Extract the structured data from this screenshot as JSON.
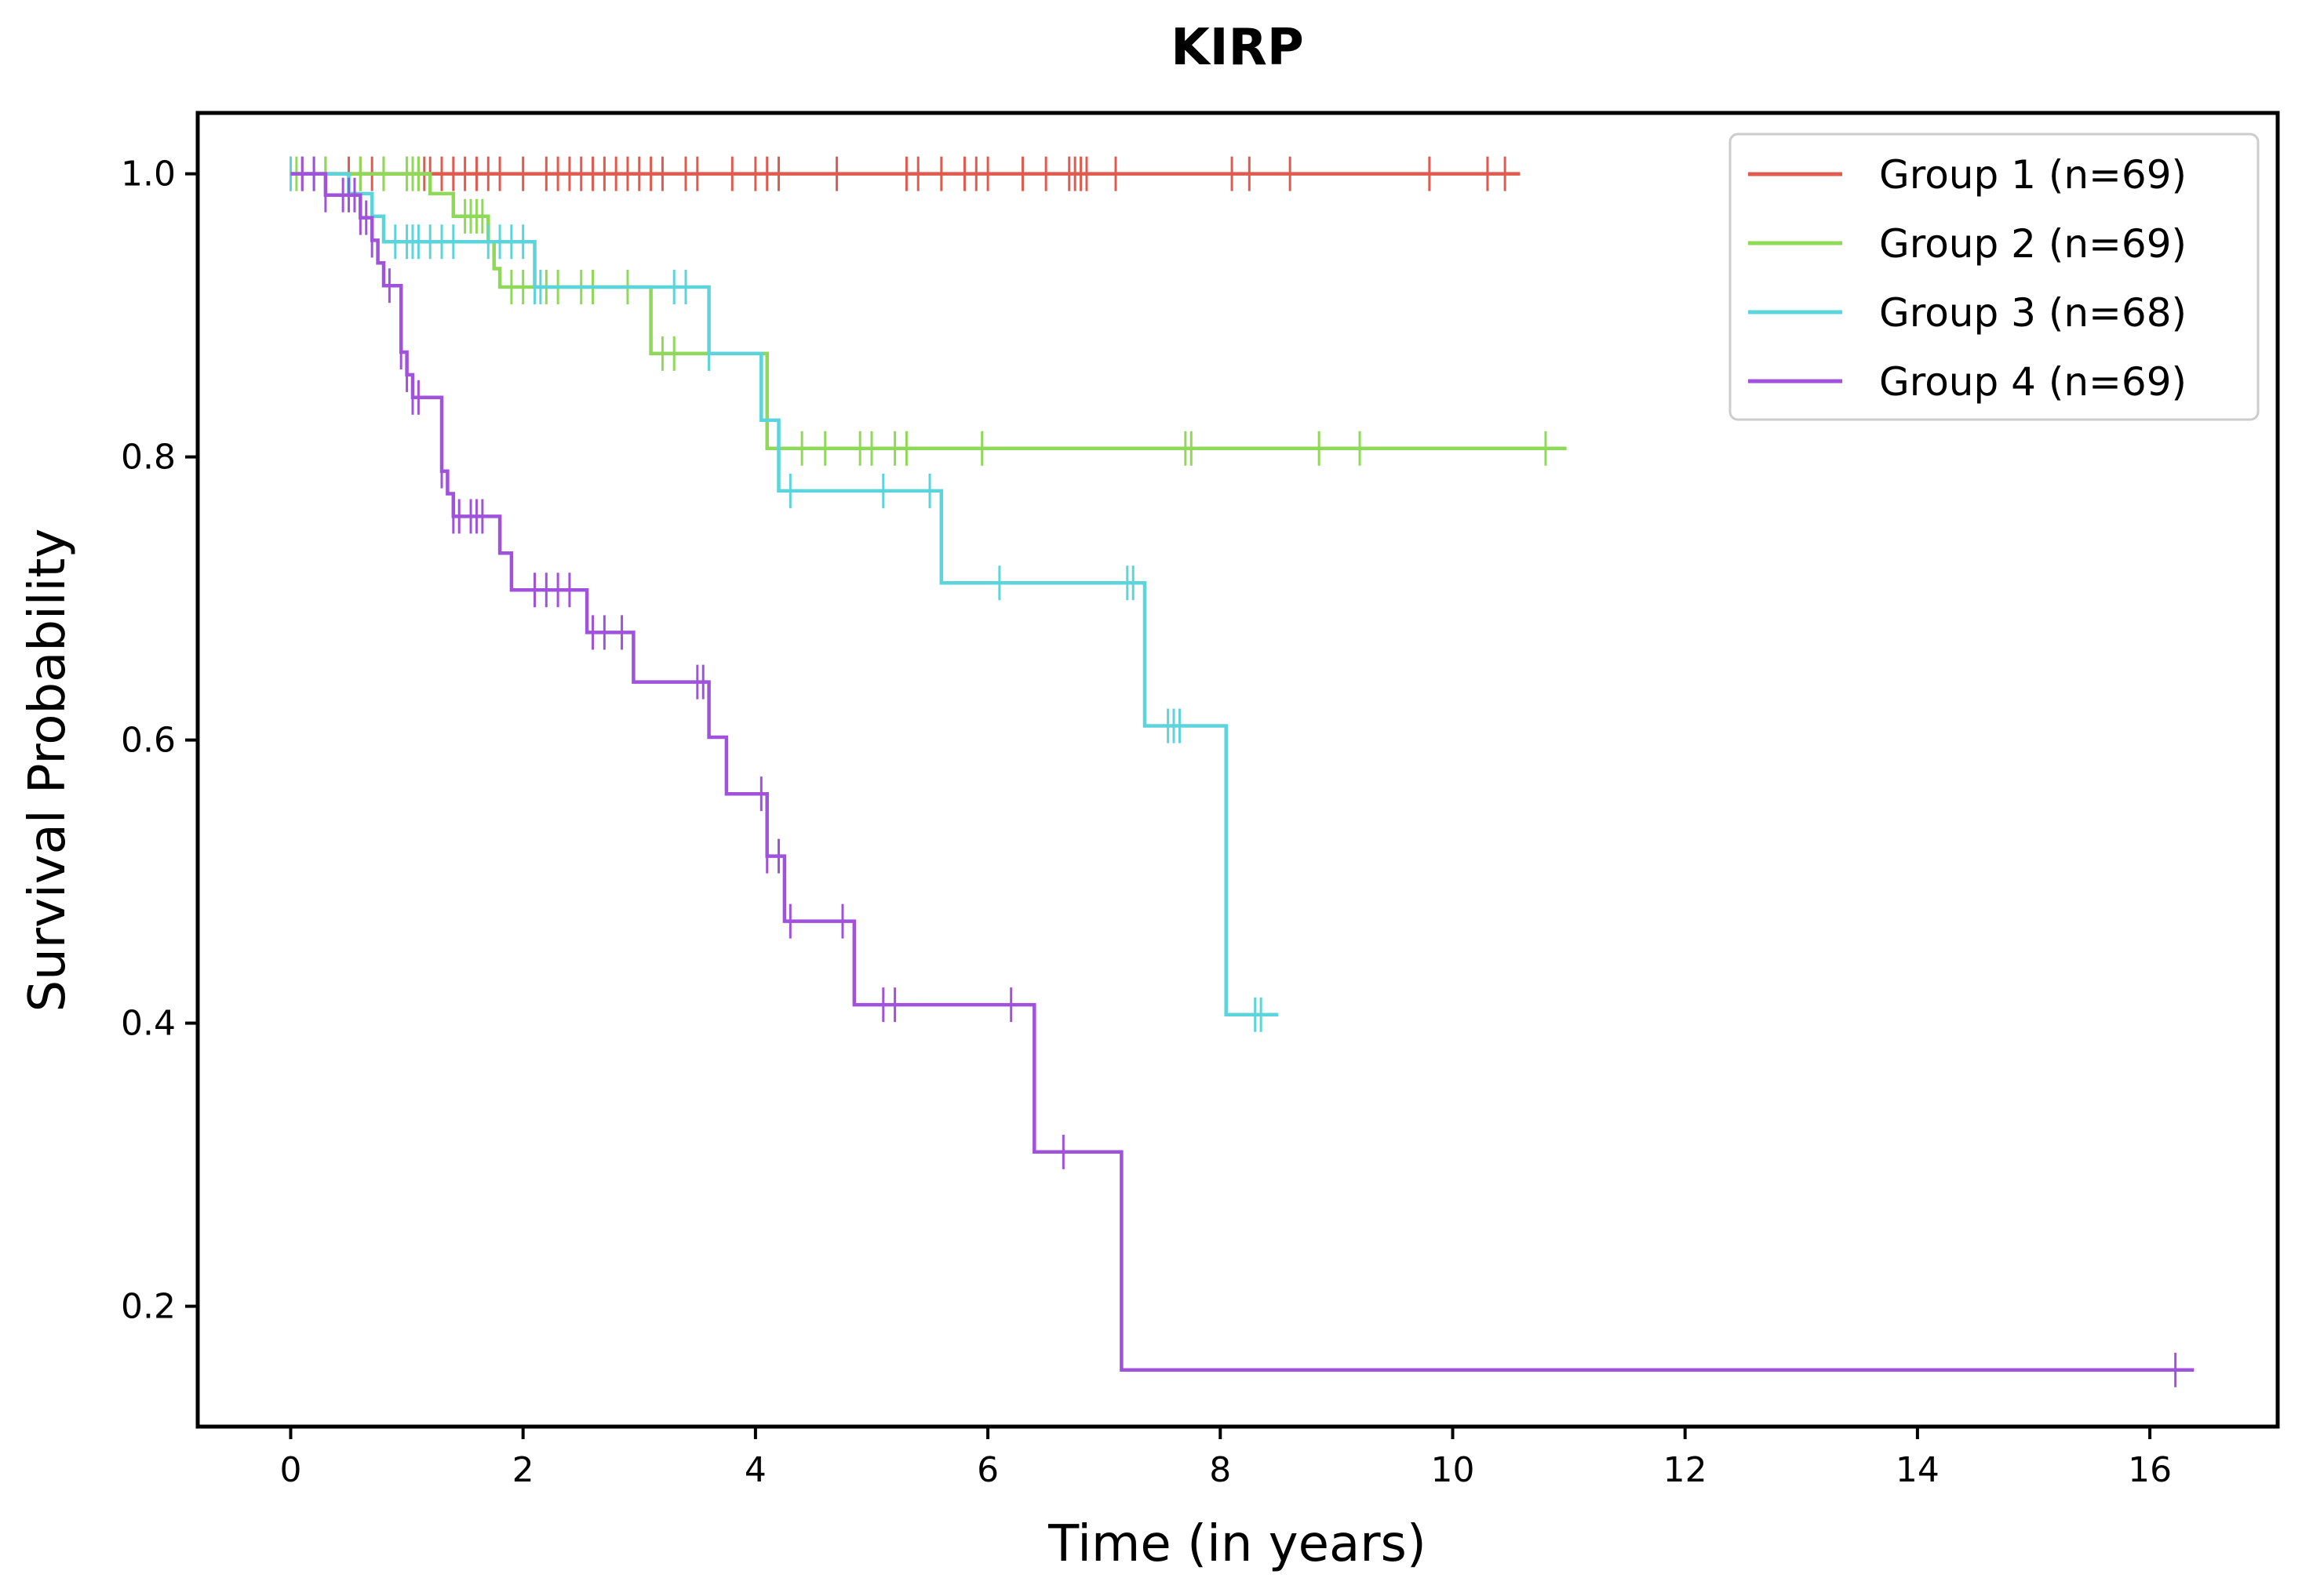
{
  "chart_data": {
    "type": "line",
    "step": true,
    "title": "KIRP",
    "xlabel": "Time (in years)",
    "ylabel": "Survival Probability",
    "xlim": [
      -0.8,
      17.1
    ],
    "ylim": [
      0.115,
      1.043
    ],
    "xticks": [
      0,
      2,
      4,
      6,
      8,
      10,
      12,
      14,
      16
    ],
    "xtick_labels": [
      "0",
      "2",
      "4",
      "6",
      "8",
      "10",
      "12",
      "14",
      "16"
    ],
    "yticks": [
      0.2,
      0.4,
      0.6,
      0.8,
      1.0
    ],
    "ytick_labels": [
      "0.2",
      "0.4",
      "0.6",
      "0.8",
      "1.0"
    ],
    "grid": false,
    "legend_position": "top-right",
    "series": [
      {
        "name": "Group 1 (n=69)",
        "color": "#e05a4e",
        "steps": [
          [
            0,
            1.0
          ]
        ],
        "end": 10.58,
        "censored": [
          0.0,
          0.1,
          0.2,
          0.3,
          0.5,
          0.6,
          0.7,
          0.8,
          1.0,
          1.05,
          1.1,
          1.15,
          1.2,
          1.3,
          1.4,
          1.5,
          1.6,
          1.7,
          1.8,
          2.0,
          2.2,
          2.3,
          2.4,
          2.5,
          2.6,
          2.7,
          2.8,
          2.9,
          3.0,
          3.1,
          3.2,
          3.4,
          3.5,
          3.8,
          4.0,
          4.1,
          4.2,
          4.7,
          5.3,
          5.4,
          5.6,
          5.8,
          5.9,
          6.0,
          6.3,
          6.5,
          6.7,
          6.75,
          6.8,
          6.85,
          7.1,
          8.1,
          8.25,
          8.6,
          9.8,
          10.3,
          10.45
        ]
      },
      {
        "name": "Group 2 (n=69)",
        "color": "#8ed957",
        "steps": [
          [
            0,
            1.0
          ],
          [
            1.2,
            0.986
          ],
          [
            1.4,
            0.97
          ],
          [
            1.7,
            0.952
          ],
          [
            1.75,
            0.933
          ],
          [
            1.8,
            0.92
          ],
          [
            3.1,
            0.873
          ],
          [
            4.1,
            0.806
          ]
        ],
        "end": 10.98,
        "censored": [
          0.05,
          0.3,
          0.6,
          0.8,
          1.0,
          1.05,
          1.1,
          1.5,
          1.55,
          1.6,
          1.65,
          1.9,
          2.0,
          2.1,
          2.2,
          2.3,
          2.5,
          2.6,
          2.9,
          3.2,
          3.3,
          3.6,
          4.2,
          4.4,
          4.6,
          4.9,
          5.0,
          5.2,
          5.3,
          5.95,
          7.7,
          7.75,
          8.85,
          9.2,
          10.8
        ]
      },
      {
        "name": "Group 3 (n=68)",
        "color": "#5bd4dc",
        "steps": [
          [
            0,
            1.0
          ],
          [
            0.5,
            0.986
          ],
          [
            0.7,
            0.97
          ],
          [
            0.8,
            0.952
          ],
          [
            2.1,
            0.92
          ],
          [
            3.6,
            0.873
          ],
          [
            4.05,
            0.826
          ],
          [
            4.2,
            0.776
          ],
          [
            5.6,
            0.711
          ],
          [
            7.35,
            0.61
          ],
          [
            8.05,
            0.406
          ]
        ],
        "end": 8.5,
        "censored": [
          0.0,
          0.1,
          0.2,
          0.9,
          1.0,
          1.05,
          1.1,
          1.2,
          1.3,
          1.4,
          1.7,
          1.8,
          1.9,
          2.0,
          2.1,
          2.15,
          3.3,
          3.4,
          3.6,
          4.3,
          5.1,
          5.5,
          6.1,
          7.2,
          7.25,
          7.55,
          7.6,
          7.65,
          8.3,
          8.35
        ]
      },
      {
        "name": "Group 4 (n=69)",
        "color": "#a052dc",
        "steps": [
          [
            0,
            1.0
          ],
          [
            0.3,
            0.985
          ],
          [
            0.6,
            0.969
          ],
          [
            0.7,
            0.953
          ],
          [
            0.75,
            0.937
          ],
          [
            0.8,
            0.921
          ],
          [
            0.95,
            0.874
          ],
          [
            1.0,
            0.858
          ],
          [
            1.05,
            0.842
          ],
          [
            1.3,
            0.79
          ],
          [
            1.35,
            0.774
          ],
          [
            1.4,
            0.758
          ],
          [
            1.8,
            0.732
          ],
          [
            1.9,
            0.706
          ],
          [
            2.55,
            0.676
          ],
          [
            2.95,
            0.641
          ],
          [
            3.6,
            0.602
          ],
          [
            3.75,
            0.562
          ],
          [
            4.1,
            0.518
          ],
          [
            4.25,
            0.472
          ],
          [
            4.85,
            0.413
          ],
          [
            6.4,
            0.309
          ],
          [
            7.15,
            0.155
          ]
        ],
        "end": 16.38,
        "censored": [
          0.1,
          0.2,
          0.3,
          0.45,
          0.5,
          0.55,
          0.6,
          0.65,
          0.7,
          0.85,
          0.95,
          1.0,
          1.05,
          1.1,
          1.3,
          1.4,
          1.45,
          1.55,
          1.6,
          1.65,
          2.1,
          2.2,
          2.3,
          2.4,
          2.6,
          2.7,
          2.85,
          3.5,
          3.55,
          4.05,
          4.1,
          4.2,
          4.3,
          4.75,
          5.1,
          5.2,
          6.2,
          6.65,
          16.22
        ]
      }
    ]
  }
}
